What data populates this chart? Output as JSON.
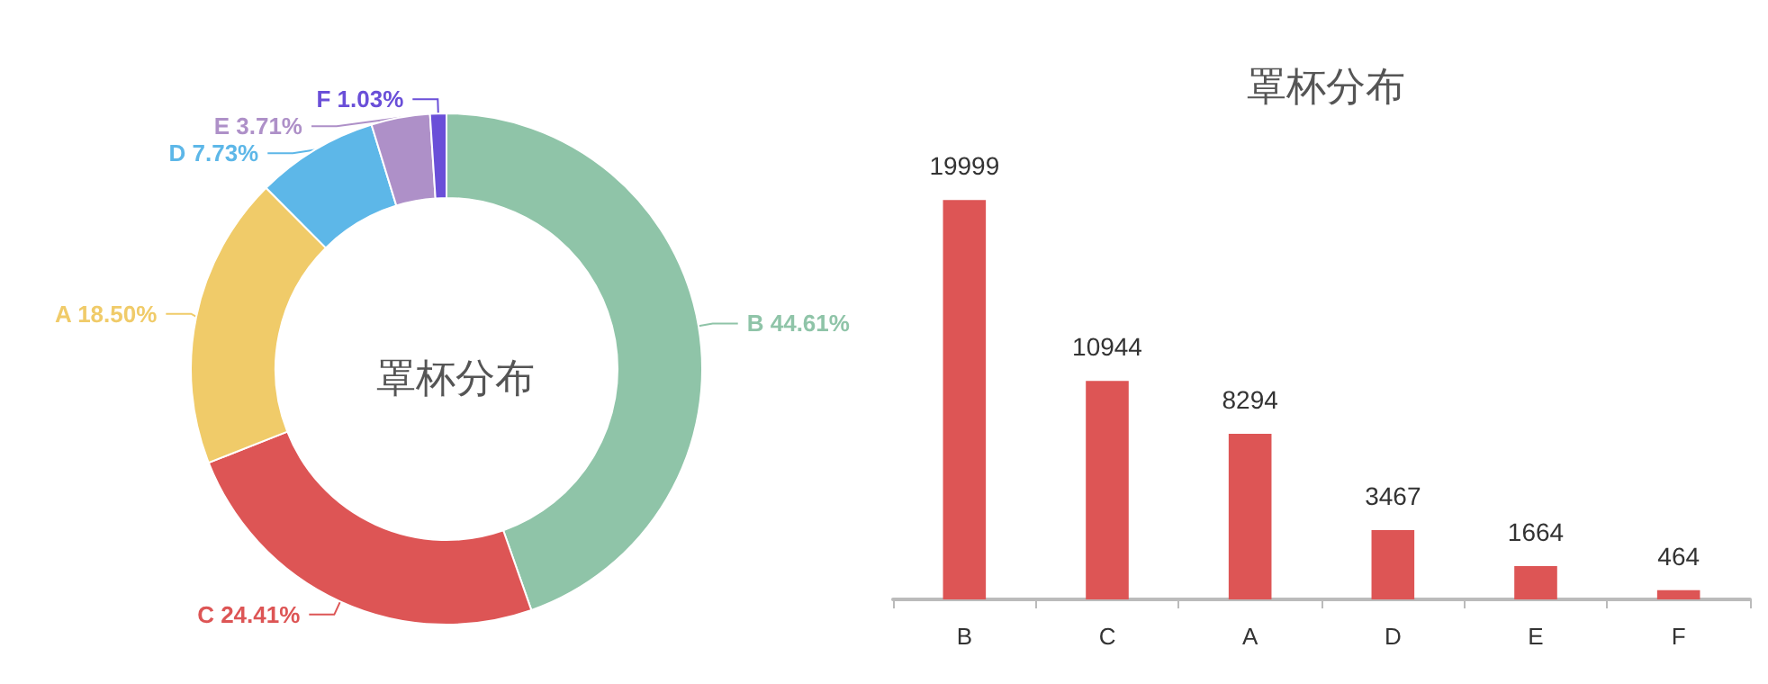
{
  "chart_data": [
    {
      "type": "donut",
      "title": "罩杯分布",
      "categories": [
        "B",
        "C",
        "A",
        "D",
        "E",
        "F"
      ],
      "values": [
        44.61,
        24.41,
        18.5,
        7.73,
        3.71,
        1.03
      ],
      "value_labels": [
        "44.61%",
        "24.41%",
        "18.50%",
        "7.73%",
        "3.71%",
        "1.03%"
      ],
      "colors": [
        "#8fc4a8",
        "#dd5555",
        "#f0cb69",
        "#5db7e8",
        "#ae90c8",
        "#6a4fd8"
      ]
    },
    {
      "type": "bar",
      "title": "罩杯分布",
      "categories": [
        "B",
        "C",
        "A",
        "D",
        "E",
        "F"
      ],
      "values": [
        19999,
        10944,
        8294,
        3467,
        1664,
        464
      ],
      "color": "#dd5555",
      "data_labels": true,
      "tick_labels": "x"
    }
  ]
}
